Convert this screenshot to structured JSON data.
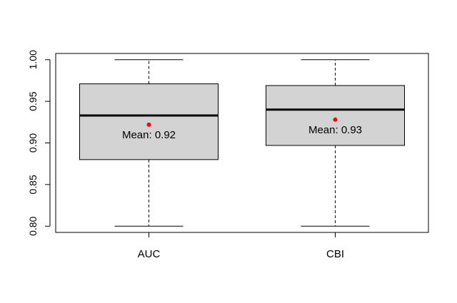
{
  "chart_data": {
    "type": "boxplot",
    "title": "",
    "xlabel": "",
    "ylabel": "",
    "ylim": [
      0.7925,
      1.0075
    ],
    "yticks": [
      0.8,
      0.85,
      0.9,
      0.95,
      1.0
    ],
    "ytick_labels": [
      "0.80",
      "0.85",
      "0.90",
      "0.95",
      "1.00"
    ],
    "categories": [
      "AUC",
      "CBI"
    ],
    "boxes": [
      {
        "category": "AUC",
        "min": 0.8,
        "q1": 0.88,
        "median": 0.933,
        "q3": 0.971,
        "max": 1.0,
        "mean": 0.922,
        "mean_label": "Mean: 0.92"
      },
      {
        "category": "CBI",
        "min": 0.8,
        "q1": 0.897,
        "median": 0.94,
        "q3": 0.969,
        "max": 1.0,
        "mean": 0.928,
        "mean_label": "Mean: 0.93"
      }
    ],
    "box_fill": "#d3d3d3",
    "mean_marker_color": "#ff0000",
    "grid": false,
    "legend": "none"
  }
}
